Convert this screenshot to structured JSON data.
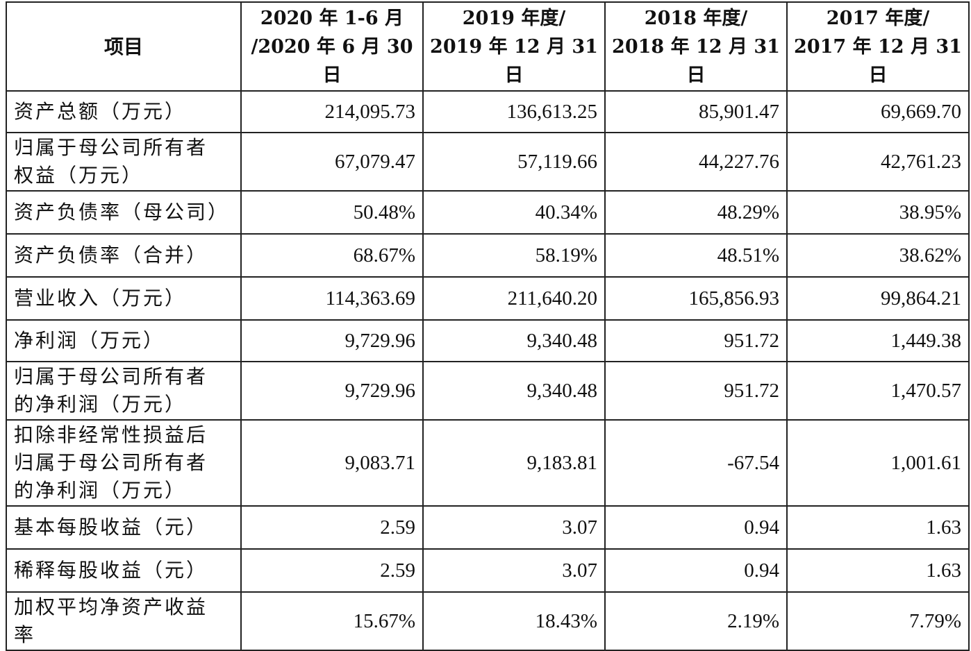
{
  "table": {
    "header": {
      "item": "项目",
      "cols": [
        {
          "l1": "2020 年 1-6 月",
          "l2": "/2020 年 6 月 30",
          "l3": "日"
        },
        {
          "l1": "2019 年度/",
          "l2": "2019 年 12 月 31",
          "l3": "日"
        },
        {
          "l1": "2018 年度/",
          "l2": "2018 年 12 月 31",
          "l3": "日"
        },
        {
          "l1": "2017 年度/",
          "l2": "2017 年 12 月 31",
          "l3": "日"
        }
      ]
    },
    "rows": [
      {
        "l1": "资产总额（万元）",
        "l2": "",
        "l3": "",
        "v": [
          "214,095.73",
          "136,613.25",
          "85,901.47",
          "69,669.70"
        ]
      },
      {
        "l1": "归属于母公司所有者",
        "l2": "权益（万元）",
        "l3": "",
        "v": [
          "67,079.47",
          "57,119.66",
          "44,227.76",
          "42,761.23"
        ]
      },
      {
        "l1": "资产负债率（母公司）",
        "l2": "",
        "l3": "",
        "v": [
          "50.48%",
          "40.34%",
          "48.29%",
          "38.95%"
        ]
      },
      {
        "l1": "资产负债率（合并）",
        "l2": "",
        "l3": "",
        "v": [
          "68.67%",
          "58.19%",
          "48.51%",
          "38.62%"
        ]
      },
      {
        "l1": "营业收入（万元）",
        "l2": "",
        "l3": "",
        "v": [
          "114,363.69",
          "211,640.20",
          "165,856.93",
          "99,864.21"
        ]
      },
      {
        "l1": "净利润（万元）",
        "l2": "",
        "l3": "",
        "v": [
          "9,729.96",
          "9,340.48",
          "951.72",
          "1,449.38"
        ]
      },
      {
        "l1": "归属于母公司所有者",
        "l2": "的净利润（万元）",
        "l3": "",
        "v": [
          "9,729.96",
          "9,340.48",
          "951.72",
          "1,470.57"
        ]
      },
      {
        "l1": "扣除非经常性损益后",
        "l2": "归属于母公司所有者",
        "l3": "的净利润（万元）",
        "v": [
          "9,083.71",
          "9,183.81",
          "-67.54",
          "1,001.61"
        ]
      },
      {
        "l1": "基本每股收益（元）",
        "l2": "",
        "l3": "",
        "v": [
          "2.59",
          "3.07",
          "0.94",
          "1.63"
        ]
      },
      {
        "l1": "稀释每股收益（元）",
        "l2": "",
        "l3": "",
        "v": [
          "2.59",
          "3.07",
          "0.94",
          "1.63"
        ]
      },
      {
        "l1": "加权平均净资产收益",
        "l2": "率",
        "l3": "",
        "v": [
          "15.67%",
          "18.43%",
          "2.19%",
          "7.79%"
        ]
      }
    ]
  }
}
